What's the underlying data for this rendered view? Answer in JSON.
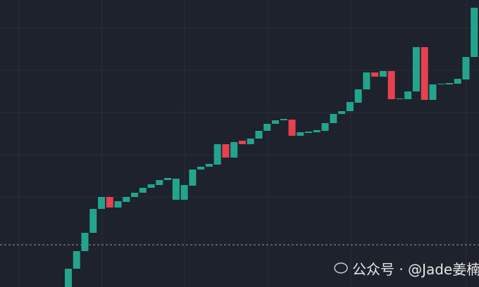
{
  "chart_data": {
    "type": "candlestick",
    "categories": [
      null,
      null,
      null,
      null,
      null,
      null,
      null,
      null,
      null,
      null,
      null,
      null,
      null,
      null,
      null,
      null,
      null,
      null,
      null,
      null,
      null,
      null,
      null,
      null,
      null,
      null,
      null,
      null,
      null,
      null,
      null,
      null,
      null,
      null,
      null,
      null,
      null,
      null,
      null,
      null,
      null,
      null,
      null,
      null,
      null,
      null,
      null,
      null,
      null,
      null
    ],
    "open": [
      0,
      26,
      51,
      77,
      111,
      128,
      113,
      121,
      128,
      134,
      141,
      145,
      152,
      124,
      124,
      144,
      167,
      171,
      174,
      203,
      184,
      208,
      203,
      211,
      222,
      232,
      237,
      238,
      215,
      219,
      220,
      222,
      233,
      246,
      250,
      262,
      281,
      305,
      299,
      307,
      267,
      267,
      278,
      341,
      266,
      288,
      288,
      289,
      295,
      327
    ],
    "close": [
      26,
      51,
      77,
      111,
      128,
      113,
      122,
      128,
      134,
      141,
      146,
      152,
      155,
      154,
      145,
      167,
      171,
      175,
      203,
      184,
      206,
      203,
      211,
      222,
      232,
      237,
      239,
      215,
      220,
      221,
      223,
      233,
      246,
      250,
      263,
      281,
      305,
      299,
      307,
      267,
      268,
      278,
      341,
      266,
      288,
      289,
      290,
      296,
      327,
      397
    ],
    "up_color": "#22a58d",
    "down_color": "#e8404f",
    "ylim": [
      0,
      408
    ],
    "yticks": [
      128,
      188,
      248,
      308,
      368
    ],
    "grid": true,
    "price_line": 60,
    "watermark": "公众号 · @Jade姜楠"
  }
}
